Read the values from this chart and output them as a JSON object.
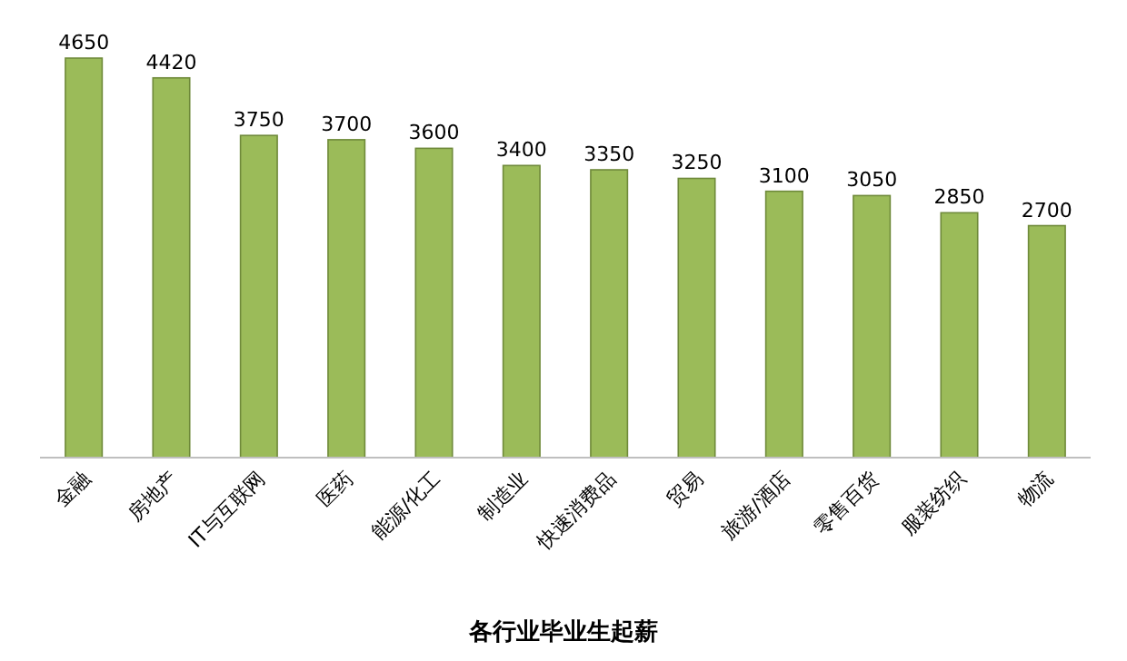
{
  "chart_data": {
    "type": "bar",
    "title": "各行业毕业生起薪",
    "categories": [
      "金融",
      "房地产",
      "IT与互联网",
      "医药",
      "能源/化工",
      "制造业",
      "快速消费品",
      "贸易",
      "旅游/酒店",
      "零售百货",
      "服装纺织",
      "物流"
    ],
    "values": [
      4650,
      4420,
      3750,
      3700,
      3600,
      3400,
      3350,
      3250,
      3100,
      3050,
      2850,
      2700
    ],
    "color": "#9bbb59",
    "data_labels": true
  }
}
